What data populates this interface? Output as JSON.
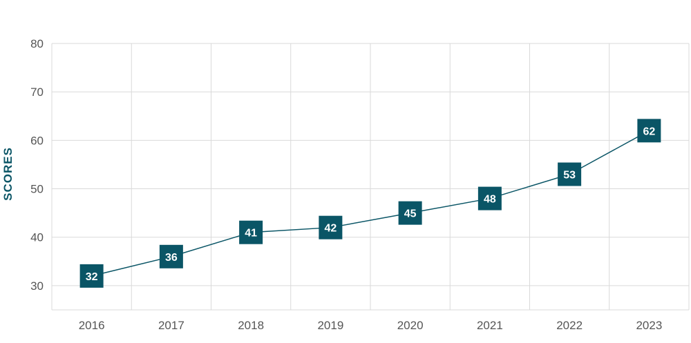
{
  "chart_data": {
    "type": "line",
    "categories": [
      "2016",
      "2017",
      "2018",
      "2019",
      "2020",
      "2021",
      "2022",
      "2023"
    ],
    "values": [
      32,
      36,
      41,
      42,
      45,
      48,
      53,
      62
    ],
    "ylabel": "SCORES",
    "ylim": [
      25,
      80
    ],
    "yticks": [
      30,
      40,
      50,
      60,
      70,
      80
    ],
    "grid": true,
    "colors": {
      "line": "#0a5566",
      "marker": "#0a5566",
      "marker_text": "#ffffff",
      "grid": "#d9d9d9",
      "axis_text": "#555555"
    }
  }
}
